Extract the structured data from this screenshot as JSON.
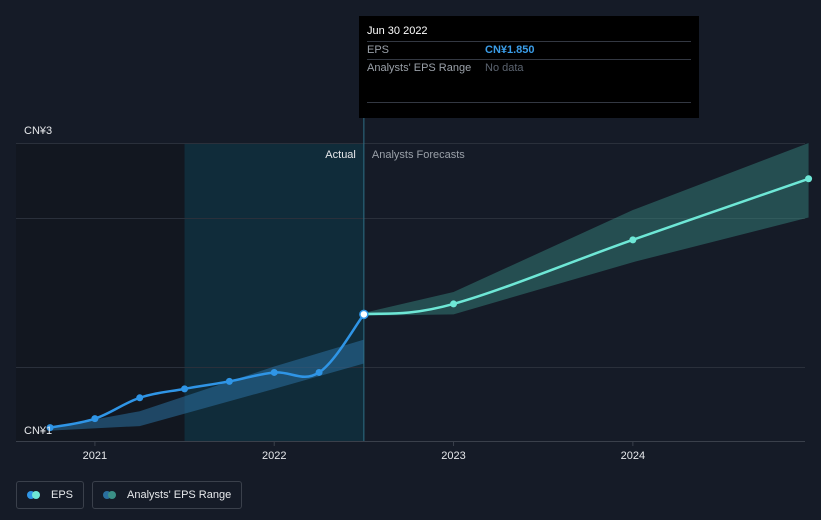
{
  "tooltip": {
    "date": "Jun 30 2022",
    "rows": [
      {
        "label": "EPS",
        "value": "CN¥1.850"
      },
      {
        "label": "Analysts' EPS Range",
        "value": "No data"
      }
    ]
  },
  "sections": {
    "actual": "Actual",
    "forecast": "Analysts Forecasts"
  },
  "legend": [
    {
      "label": "EPS"
    },
    {
      "label": "Analysts' EPS Range"
    }
  ],
  "colors": {
    "eps_actual": "#2f95e6",
    "eps_forecast": "#6ee7d6",
    "range_actual": "#2a6f9e",
    "range_forecast": "#3a8f86",
    "past_shade": "#0d3a4a"
  },
  "chart_data": {
    "type": "line",
    "ylim": [
      1,
      3
    ],
    "y_ticks": [
      {
        "value": 3,
        "label": "CN¥3"
      },
      {
        "value": 1,
        "label": "CN¥1"
      }
    ],
    "x_ticks": [
      {
        "value": 2021.0,
        "label": "2021"
      },
      {
        "value": 2022.0,
        "label": "2022"
      },
      {
        "value": 2023.0,
        "label": "2023"
      },
      {
        "value": 2024.0,
        "label": "2024"
      }
    ],
    "xlim": [
      2020.56,
      2024.96
    ],
    "divider_x": 2022.5,
    "past_window_start": 2021.5,
    "series": [
      {
        "name": "EPS",
        "points": [
          [
            2020.75,
            1.09
          ],
          [
            2021.0,
            1.15
          ],
          [
            2021.25,
            1.29
          ],
          [
            2021.5,
            1.35
          ],
          [
            2021.75,
            1.4
          ],
          [
            2022.0,
            1.46
          ],
          [
            2022.25,
            1.46
          ],
          [
            2022.5,
            1.85
          ]
        ]
      },
      {
        "name": "EPS Forecast",
        "points": [
          [
            2022.5,
            1.85
          ],
          [
            2023.0,
            1.92
          ],
          [
            2024.0,
            2.35
          ],
          [
            2024.98,
            2.76
          ]
        ]
      }
    ],
    "range_actual": {
      "upper": [
        [
          2020.75,
          1.09
        ],
        [
          2021.25,
          1.2
        ],
        [
          2022.0,
          1.5
        ],
        [
          2022.5,
          1.68
        ]
      ],
      "lower": [
        [
          2020.75,
          1.07
        ],
        [
          2021.25,
          1.1
        ],
        [
          2022.0,
          1.35
        ],
        [
          2022.5,
          1.52
        ]
      ]
    },
    "range_forecast": {
      "upper": [
        [
          2022.5,
          1.86
        ],
        [
          2023.0,
          2.0
        ],
        [
          2024.0,
          2.55
        ],
        [
          2024.98,
          3.0
        ]
      ],
      "lower": [
        [
          2022.5,
          1.84
        ],
        [
          2023.0,
          1.85
        ],
        [
          2024.0,
          2.2
        ],
        [
          2024.98,
          2.5
        ]
      ]
    }
  }
}
